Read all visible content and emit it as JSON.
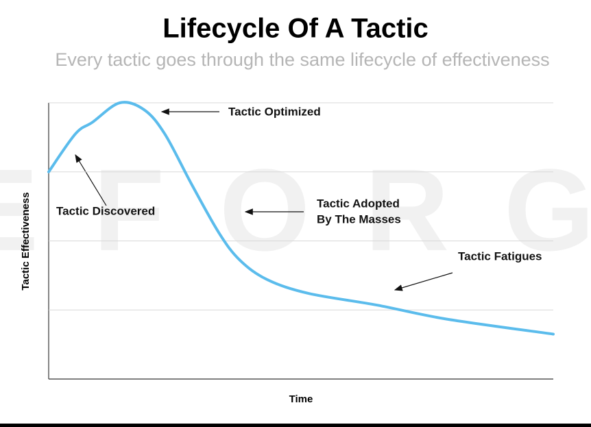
{
  "chart_data": {
    "type": "line",
    "title": "Lifecycle Of A Tactic",
    "subtitle": "Every tactic goes through the same lifecycle of effectiveness",
    "watermark": "EFORG",
    "x_label": "Time",
    "y_label": "Tactic Effectiveness",
    "xlim": [
      0,
      10
    ],
    "ylim": [
      0,
      4
    ],
    "yticks": [
      1,
      2,
      3,
      4
    ],
    "grid": true,
    "color": "#5bbcec",
    "x": [
      0,
      0.53,
      0.87,
      1.41,
      1.89,
      2.3,
      2.84,
      3.38,
      3.79,
      4.33,
      5.15,
      6.51,
      7.87,
      10
    ],
    "values": [
      3.0,
      3.55,
      3.72,
      4.0,
      3.9,
      3.55,
      2.81,
      2.11,
      1.72,
      1.44,
      1.24,
      1.07,
      0.87,
      0.65
    ],
    "annotations": [
      {
        "text": "Tactic Optimized"
      },
      {
        "text": "Tactic Discovered"
      },
      {
        "text": [
          "Tactic Adopted",
          "By The Masses"
        ]
      },
      {
        "text": "Tactic Fatigues"
      }
    ]
  }
}
